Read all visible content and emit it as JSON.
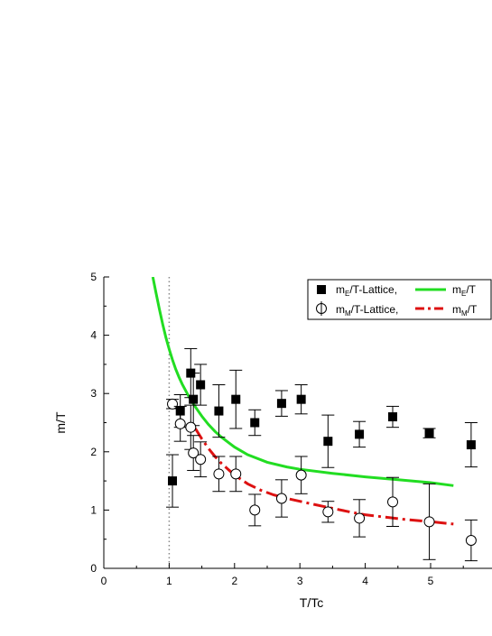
{
  "chart_data": {
    "type": "scatter",
    "xlabel": "T/Tc",
    "ylabel": "m/T",
    "xlim": [
      0,
      6
    ],
    "ylim": [
      0,
      5
    ],
    "x_ticks": [
      "0",
      "1",
      "2",
      "3",
      "4",
      "5"
    ],
    "y_ticks": [
      "0",
      "1",
      "2",
      "3",
      "4",
      "5"
    ],
    "grid": false,
    "legend_position": "top-right",
    "reference_line": {
      "x": 1,
      "style": "dotted",
      "color": "#888888"
    },
    "legend": [
      {
        "marker": "filled-square",
        "base": "m",
        "sub": "E",
        "rest": "/T-Lattice,"
      },
      {
        "marker": "green-line",
        "base": "m",
        "sub": "E",
        "rest": "/T"
      },
      {
        "marker": "open-circle",
        "base": "m",
        "sub": "M",
        "rest": "/T-Lattice,"
      },
      {
        "marker": "red-dashdot-line",
        "base": "m",
        "sub": "M",
        "rest": "/T"
      }
    ],
    "series": [
      {
        "name": "mE/T-Lattice",
        "marker": "filled-square",
        "color": "#000000",
        "points": [
          {
            "x": 1.05,
            "y": 1.5,
            "err": 0.45
          },
          {
            "x": 1.17,
            "y": 2.7,
            "err": 0.28
          },
          {
            "x": 1.33,
            "y": 3.35,
            "err": 0.42
          },
          {
            "x": 1.37,
            "y": 2.9,
            "err": 0.45
          },
          {
            "x": 1.48,
            "y": 3.15,
            "err": 0.35
          },
          {
            "x": 1.76,
            "y": 2.7,
            "err": 0.45
          },
          {
            "x": 2.02,
            "y": 2.9,
            "err": 0.5
          },
          {
            "x": 2.31,
            "y": 2.5,
            "err": 0.22
          },
          {
            "x": 2.72,
            "y": 2.83,
            "err": 0.22
          },
          {
            "x": 3.02,
            "y": 2.9,
            "err": 0.25
          },
          {
            "x": 3.43,
            "y": 2.18,
            "err": 0.45
          },
          {
            "x": 3.91,
            "y": 2.3,
            "err": 0.22
          },
          {
            "x": 4.42,
            "y": 2.6,
            "err": 0.18
          },
          {
            "x": 4.98,
            "y": 2.32,
            "err": 0.08
          },
          {
            "x": 5.62,
            "y": 2.12,
            "err": 0.38
          }
        ]
      },
      {
        "name": "mM/T-Lattice",
        "marker": "open-circle",
        "color": "#000000",
        "points": [
          {
            "x": 1.05,
            "y": 2.82,
            "err": 0.08
          },
          {
            "x": 1.17,
            "y": 2.48,
            "err": 0.3
          },
          {
            "x": 1.33,
            "y": 2.42,
            "err": 0.38
          },
          {
            "x": 1.37,
            "y": 1.98,
            "err": 0.3
          },
          {
            "x": 1.48,
            "y": 1.87,
            "err": 0.3
          },
          {
            "x": 1.76,
            "y": 1.62,
            "err": 0.3
          },
          {
            "x": 2.02,
            "y": 1.62,
            "err": 0.3
          },
          {
            "x": 2.31,
            "y": 1.0,
            "err": 0.27
          },
          {
            "x": 2.72,
            "y": 1.2,
            "err": 0.32
          },
          {
            "x": 3.02,
            "y": 1.6,
            "err": 0.32
          },
          {
            "x": 3.43,
            "y": 0.97,
            "err": 0.18
          },
          {
            "x": 3.91,
            "y": 0.86,
            "err": 0.32
          },
          {
            "x": 4.42,
            "y": 1.14,
            "err": 0.42
          },
          {
            "x": 4.98,
            "y": 0.8,
            "err": 0.65
          },
          {
            "x": 5.62,
            "y": 0.48,
            "err": 0.35
          }
        ]
      }
    ],
    "curves": [
      {
        "name": "mE/T",
        "color": "#22dd22",
        "style": "solid",
        "x": [
          0.75,
          0.8,
          0.85,
          0.9,
          0.95,
          1.0,
          1.05,
          1.1,
          1.15,
          1.2,
          1.3,
          1.4,
          1.5,
          1.6,
          1.7,
          1.8,
          2.0,
          2.2,
          2.5,
          2.8,
          3.0,
          3.5,
          4.0,
          4.5,
          5.0,
          5.35
        ],
        "y": [
          5.0,
          4.72,
          4.45,
          4.19,
          3.96,
          3.76,
          3.58,
          3.42,
          3.28,
          3.16,
          2.95,
          2.77,
          2.61,
          2.47,
          2.35,
          2.25,
          2.08,
          1.95,
          1.82,
          1.74,
          1.7,
          1.63,
          1.57,
          1.52,
          1.47,
          1.42
        ]
      },
      {
        "name": "mM/T",
        "color": "#dd1111",
        "style": "dash-dot",
        "x": [
          1.4,
          1.5,
          1.6,
          1.7,
          1.8,
          2.0,
          2.2,
          2.4,
          2.6,
          2.8,
          3.0,
          3.2,
          3.5,
          3.8,
          4.0,
          4.3,
          4.6,
          5.0,
          5.35
        ],
        "y": [
          2.4,
          2.22,
          2.06,
          1.92,
          1.8,
          1.6,
          1.45,
          1.34,
          1.26,
          1.2,
          1.15,
          1.1,
          1.03,
          0.96,
          0.92,
          0.88,
          0.84,
          0.8,
          0.76
        ]
      }
    ]
  }
}
